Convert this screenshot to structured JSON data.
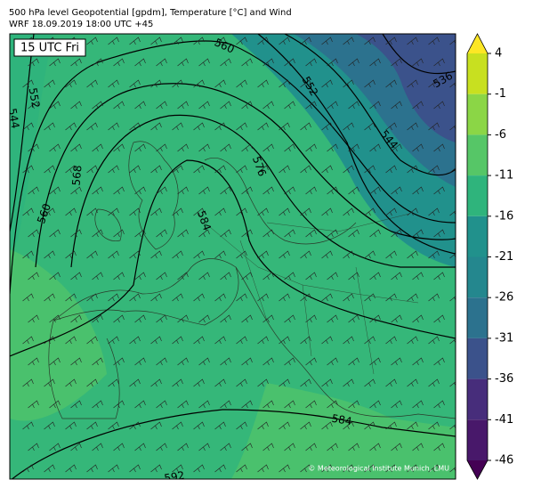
{
  "title": [
    "500 hPa level Geopotential [gpdm], Temperature [°C] and Wind",
    "WRF 18.09.2019 18:00 UTC +45"
  ],
  "time_label": "15 UTC Fri",
  "contour_labels": [
    "560",
    "552",
    "536",
    "544",
    "576",
    "584",
    "568",
    "552",
    "544",
    "560",
    "584",
    "592"
  ],
  "credit": "© Meteorological Institute Munich, LMU",
  "colorbar": {
    "ticks": [
      4,
      -1,
      -6,
      -11,
      -16,
      -21,
      -26,
      -31,
      -36,
      -41,
      -46
    ],
    "colors": [
      "#c8e020",
      "#8bd646",
      "#56c667",
      "#2fb47c",
      "#21918c",
      "#24878e",
      "#2c728e",
      "#3b528b",
      "#472d7b",
      "#48186a"
    ],
    "extend_colors": [
      "#fde725",
      "#440154"
    ]
  }
}
